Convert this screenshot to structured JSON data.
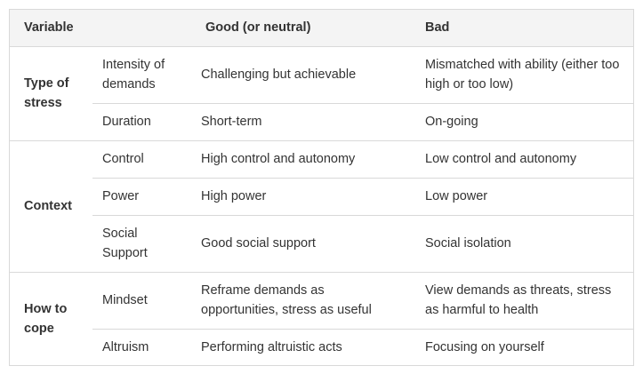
{
  "header": {
    "variable": "Variable",
    "good": "Good (or neutral)",
    "bad": "Bad"
  },
  "groups": [
    {
      "category": "Type of stress",
      "rows": [
        {
          "sub": "Intensity of demands",
          "good": "Challenging but achievable",
          "bad": "Mismatched with ability (either too high or too low)"
        },
        {
          "sub": "Duration",
          "good": "Short-term",
          "bad": "On-going"
        }
      ]
    },
    {
      "category": "Context",
      "rows": [
        {
          "sub": "Control",
          "good": "High control and autonomy",
          "bad": "Low control and autonomy"
        },
        {
          "sub": "Power",
          "good": "High power",
          "bad": "Low power"
        },
        {
          "sub": "Social Support",
          "good": "Good social support",
          "bad": "Social isolation"
        }
      ]
    },
    {
      "category": "How to cope",
      "rows": [
        {
          "sub": "Mindset",
          "good": "Reframe demands as opportunities, stress as useful",
          "bad": "View demands as threats, stress as harmful to health"
        },
        {
          "sub": "Altruism",
          "good": "Performing altruistic acts",
          "bad": "Focusing on yourself"
        }
      ]
    }
  ]
}
